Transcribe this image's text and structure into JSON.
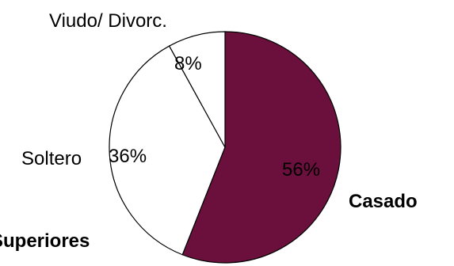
{
  "chart_data": {
    "type": "pie",
    "categories": [
      "Casado",
      "Soltero",
      "Viudo/ Divorc."
    ],
    "values": [
      56,
      36,
      8
    ],
    "value_labels": [
      "56%",
      "36%",
      "8%"
    ],
    "colors": [
      "#6b0f3c",
      "#ffffff",
      "#ffffff"
    ],
    "value_label_colors": [
      "#ffffff",
      "#000000",
      "#000000"
    ],
    "outer_label_bold": [
      true,
      false,
      false
    ],
    "start_angle_deg": 0,
    "direction": "clockwise",
    "edge_color": "#000000",
    "partial_label": "Superiores"
  }
}
